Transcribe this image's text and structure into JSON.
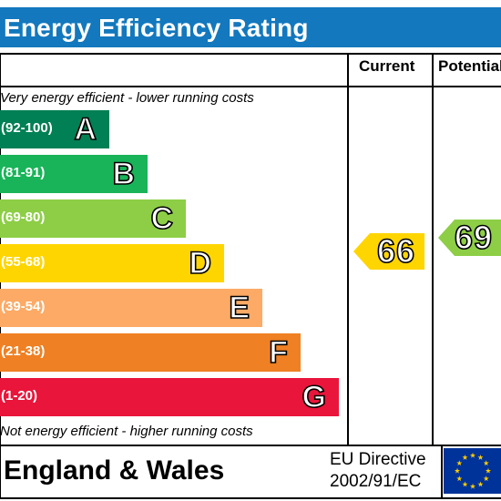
{
  "header": {
    "title": "Energy Efficiency Rating"
  },
  "columns": {
    "current": "Current",
    "potential": "Potential"
  },
  "notes": {
    "top": "Very energy efficient - lower running costs",
    "bottom": "Not energy efficient - higher running costs"
  },
  "bands": [
    {
      "range": "(92-100)",
      "letter": "A",
      "color": "#008054"
    },
    {
      "range": "(81-91)",
      "letter": "B",
      "color": "#19b459"
    },
    {
      "range": "(69-80)",
      "letter": "C",
      "color": "#8dce46"
    },
    {
      "range": "(55-68)",
      "letter": "D",
      "color": "#ffd500"
    },
    {
      "range": "(39-54)",
      "letter": "E",
      "color": "#fcaa65"
    },
    {
      "range": "(21-38)",
      "letter": "F",
      "color": "#ef8023"
    },
    {
      "range": "(1-20)",
      "letter": "G",
      "color": "#e9153b"
    }
  ],
  "ratings": {
    "current": {
      "value": "66",
      "color": "#ffd500"
    },
    "potential": {
      "value": "69",
      "color": "#8dce46"
    }
  },
  "footer": {
    "country": "England & Wales",
    "directive_line1": "EU Directive",
    "directive_line2": "2002/91/EC",
    "flag_icon": "eu-flag-icon"
  }
}
